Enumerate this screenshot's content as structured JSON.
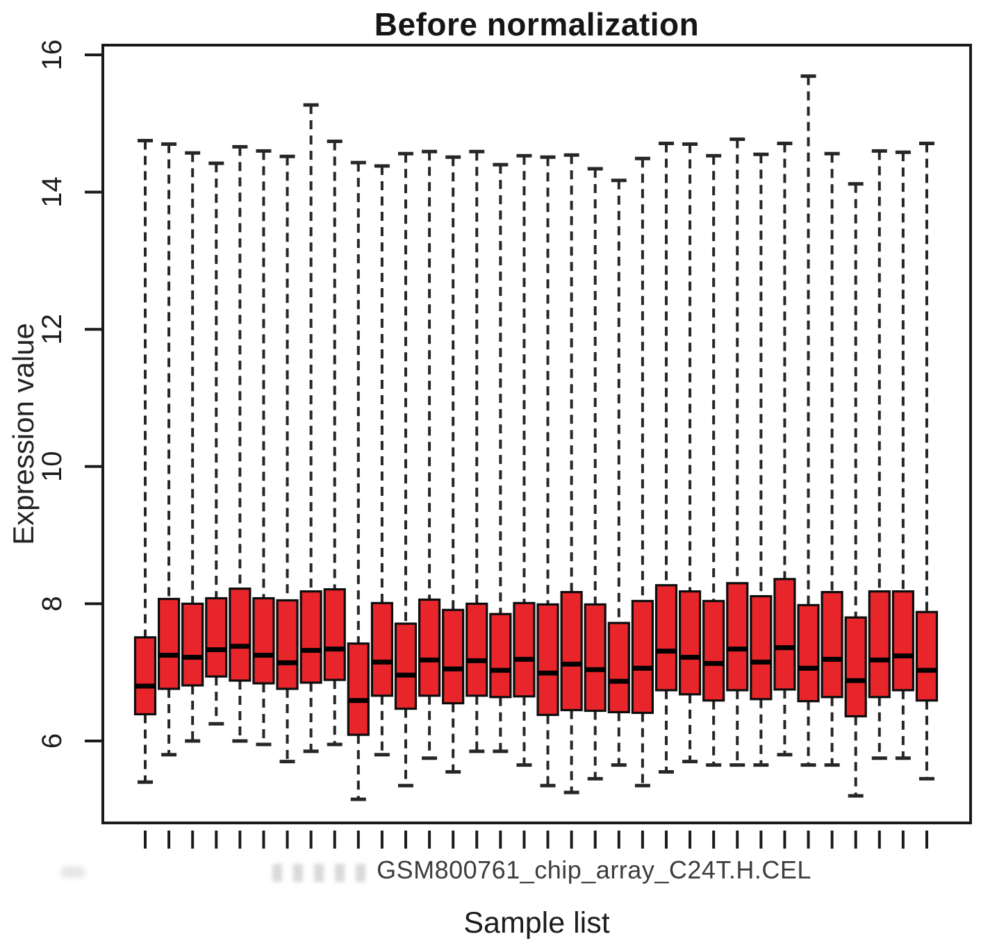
{
  "chart_data": {
    "type": "boxplot",
    "title": "Before normalization",
    "xlabel": "Sample list",
    "ylabel": "Expression value",
    "visible_x_tick_label": "GSM800761_chip_array_C24T.H.CEL",
    "y_ticks": [
      6,
      8,
      10,
      12,
      14,
      16
    ],
    "ylim": [
      4.85,
      16.15
    ],
    "n_boxes": 34,
    "grid": "off",
    "legend": "none",
    "boxes": [
      {
        "whisker_low": 5.4,
        "q1": 6.39,
        "median": 6.8,
        "q3": 7.51,
        "whisker_high": 14.75
      },
      {
        "whisker_low": 5.8,
        "q1": 6.76,
        "median": 7.25,
        "q3": 8.07,
        "whisker_high": 14.7
      },
      {
        "whisker_low": 6.0,
        "q1": 6.81,
        "median": 7.22,
        "q3": 8.0,
        "whisker_high": 14.57
      },
      {
        "whisker_low": 6.25,
        "q1": 6.94,
        "median": 7.33,
        "q3": 8.08,
        "whisker_high": 14.42
      },
      {
        "whisker_low": 6.0,
        "q1": 6.88,
        "median": 7.38,
        "q3": 8.22,
        "whisker_high": 14.66
      },
      {
        "whisker_low": 5.95,
        "q1": 6.84,
        "median": 7.25,
        "q3": 8.08,
        "whisker_high": 14.6
      },
      {
        "whisker_low": 5.7,
        "q1": 6.76,
        "median": 7.14,
        "q3": 8.05,
        "whisker_high": 14.52
      },
      {
        "whisker_low": 5.85,
        "q1": 6.85,
        "median": 7.32,
        "q3": 8.18,
        "whisker_high": 15.27
      },
      {
        "whisker_low": 5.95,
        "q1": 6.89,
        "median": 7.34,
        "q3": 8.21,
        "whisker_high": 14.74
      },
      {
        "whisker_low": 5.15,
        "q1": 6.09,
        "median": 6.59,
        "q3": 7.42,
        "whisker_high": 14.43
      },
      {
        "whisker_low": 5.8,
        "q1": 6.66,
        "median": 7.15,
        "q3": 8.01,
        "whisker_high": 14.38
      },
      {
        "whisker_low": 5.35,
        "q1": 6.47,
        "median": 6.96,
        "q3": 7.71,
        "whisker_high": 14.56
      },
      {
        "whisker_low": 5.75,
        "q1": 6.66,
        "median": 7.18,
        "q3": 8.06,
        "whisker_high": 14.59
      },
      {
        "whisker_low": 5.55,
        "q1": 6.55,
        "median": 7.05,
        "q3": 7.91,
        "whisker_high": 14.51
      },
      {
        "whisker_low": 5.85,
        "q1": 6.66,
        "median": 7.17,
        "q3": 8.0,
        "whisker_high": 14.59
      },
      {
        "whisker_low": 5.85,
        "q1": 6.64,
        "median": 7.03,
        "q3": 7.85,
        "whisker_high": 14.4
      },
      {
        "whisker_low": 5.65,
        "q1": 6.65,
        "median": 7.19,
        "q3": 8.01,
        "whisker_high": 14.53
      },
      {
        "whisker_low": 5.35,
        "q1": 6.38,
        "median": 6.99,
        "q3": 7.99,
        "whisker_high": 14.51
      },
      {
        "whisker_low": 5.25,
        "q1": 6.45,
        "median": 7.12,
        "q3": 8.17,
        "whisker_high": 14.54
      },
      {
        "whisker_low": 5.45,
        "q1": 6.44,
        "median": 7.04,
        "q3": 7.99,
        "whisker_high": 14.34
      },
      {
        "whisker_low": 5.65,
        "q1": 6.42,
        "median": 6.87,
        "q3": 7.72,
        "whisker_high": 14.17
      },
      {
        "whisker_low": 5.35,
        "q1": 6.41,
        "median": 7.06,
        "q3": 8.04,
        "whisker_high": 14.49
      },
      {
        "whisker_low": 5.55,
        "q1": 6.74,
        "median": 7.31,
        "q3": 8.27,
        "whisker_high": 14.71
      },
      {
        "whisker_low": 5.7,
        "q1": 6.68,
        "median": 7.22,
        "q3": 8.18,
        "whisker_high": 14.7
      },
      {
        "whisker_low": 5.65,
        "q1": 6.59,
        "median": 7.13,
        "q3": 8.04,
        "whisker_high": 14.53
      },
      {
        "whisker_low": 5.65,
        "q1": 6.74,
        "median": 7.34,
        "q3": 8.3,
        "whisker_high": 14.77
      },
      {
        "whisker_low": 5.65,
        "q1": 6.61,
        "median": 7.15,
        "q3": 8.11,
        "whisker_high": 14.55
      },
      {
        "whisker_low": 5.8,
        "q1": 6.75,
        "median": 7.36,
        "q3": 8.36,
        "whisker_high": 14.71
      },
      {
        "whisker_low": 5.65,
        "q1": 6.58,
        "median": 7.06,
        "q3": 7.98,
        "whisker_high": 15.69
      },
      {
        "whisker_low": 5.65,
        "q1": 6.64,
        "median": 7.19,
        "q3": 8.17,
        "whisker_high": 14.56
      },
      {
        "whisker_low": 5.2,
        "q1": 6.36,
        "median": 6.88,
        "q3": 7.8,
        "whisker_high": 14.12
      },
      {
        "whisker_low": 5.75,
        "q1": 6.64,
        "median": 7.18,
        "q3": 8.18,
        "whisker_high": 14.6
      },
      {
        "whisker_low": 5.75,
        "q1": 6.74,
        "median": 7.24,
        "q3": 8.18,
        "whisker_high": 14.58
      },
      {
        "whisker_low": 5.45,
        "q1": 6.59,
        "median": 7.03,
        "q3": 7.88,
        "whisker_high": 14.71
      }
    ],
    "colors": {
      "box_fill": "#e8252a",
      "box_border": "#0d0d0d",
      "median": "#000000",
      "whisker": "#262626",
      "frame": "#1a1a1a",
      "tick": "#1a1a1a",
      "x_tick_label_color": "#3d3d3d"
    }
  }
}
